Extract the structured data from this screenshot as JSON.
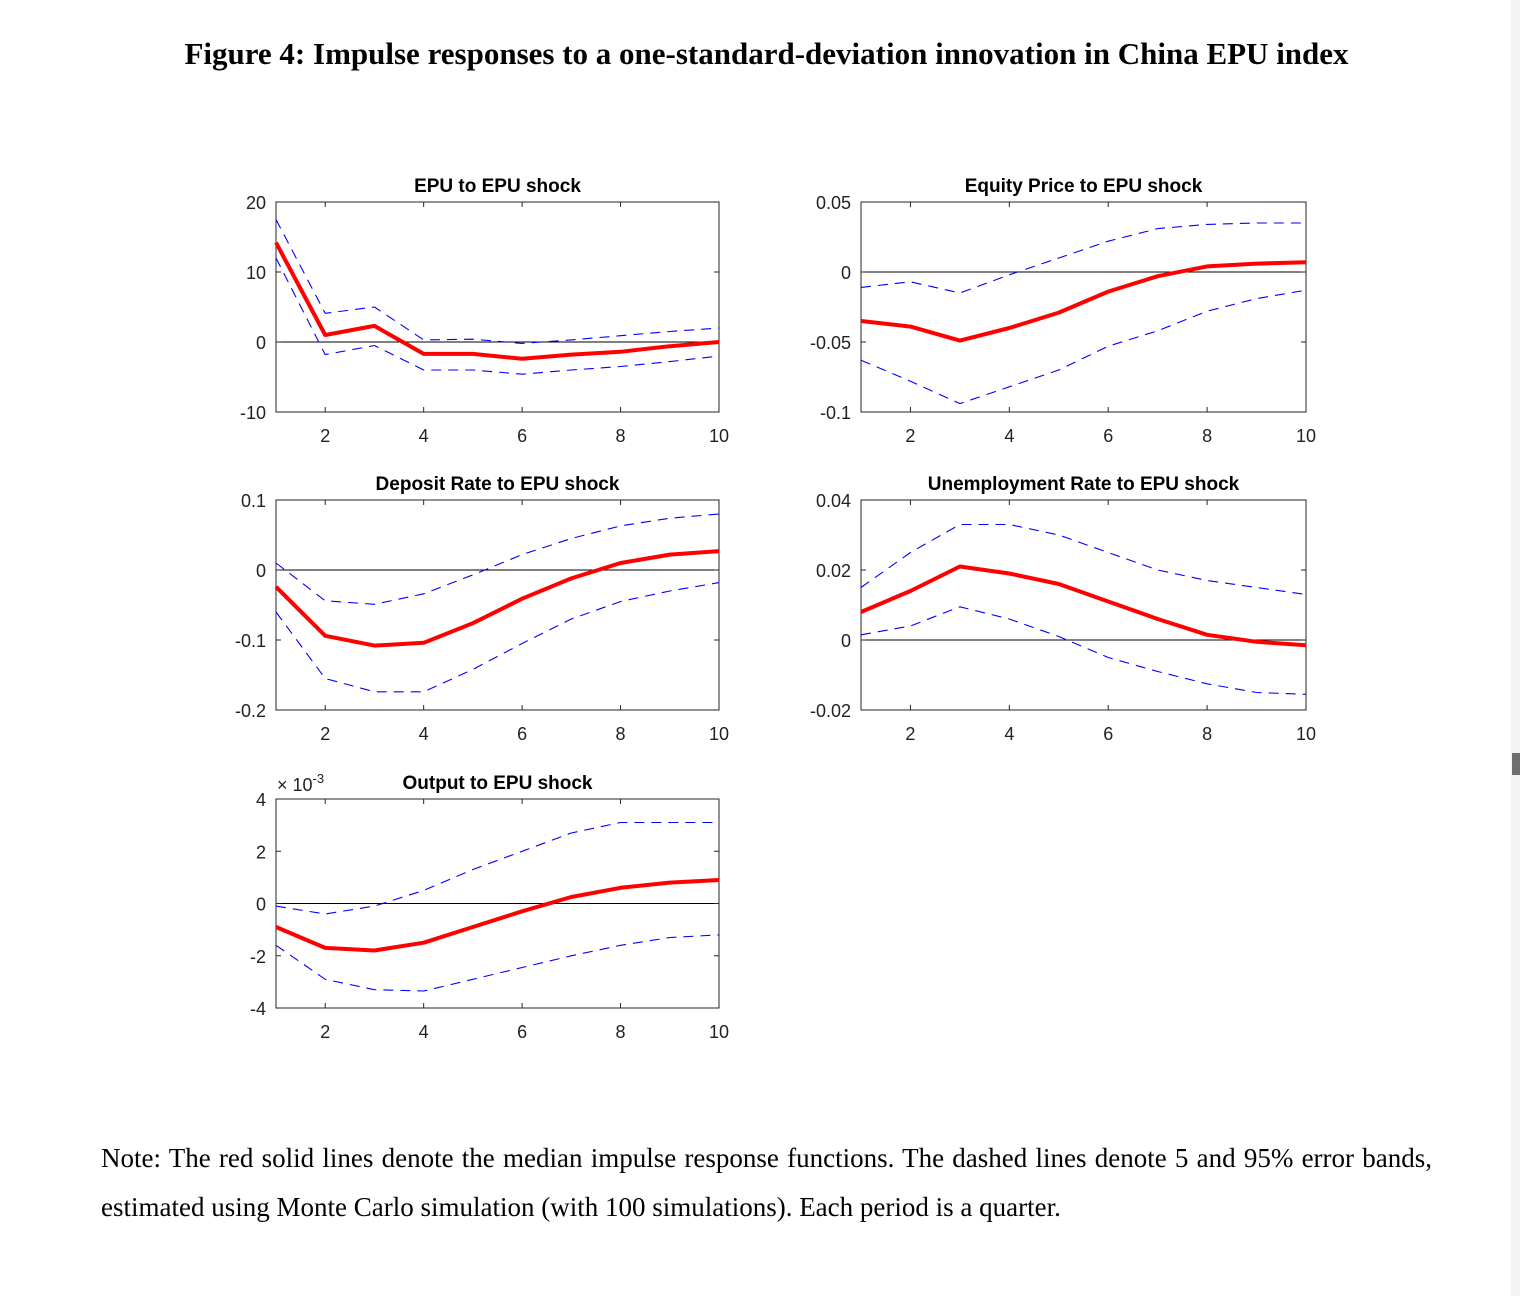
{
  "figure_title": "Figure 4: Impulse responses to a one-standard-deviation innovation in China EPU index",
  "note_text": "Note: The red solid lines denote the median impulse response functions. The dashed lines denote 5 and 95% error bands, estimated using Monte Carlo simulation (with 100 simulations). Each period is a quarter.",
  "colors": {
    "median": "#ff0000",
    "band": "#0000ff",
    "zero": "#000000",
    "axis": "#262626"
  },
  "chart_data": [
    {
      "type": "line",
      "title": "EPU to EPU shock",
      "x": [
        1,
        2,
        3,
        4,
        5,
        6,
        7,
        8,
        9,
        10
      ],
      "xlim": [
        1,
        10
      ],
      "ylim": [
        -10,
        20
      ],
      "xticks": [
        2,
        4,
        6,
        8,
        10
      ],
      "xtick_labels": [
        "2",
        "4",
        "6",
        "8",
        "10"
      ],
      "yticks": [
        -10,
        0,
        10,
        20
      ],
      "ytick_labels": [
        "-10",
        "0",
        "10",
        "20"
      ],
      "exponent_label": "",
      "series": [
        {
          "name": "median",
          "values": [
            14.2,
            1.0,
            2.3,
            -1.7,
            -1.7,
            -2.4,
            -1.8,
            -1.4,
            -0.6,
            0.0
          ]
        },
        {
          "name": "upper 95%",
          "values": [
            17.5,
            4.1,
            5.0,
            0.3,
            0.4,
            -0.2,
            0.3,
            0.9,
            1.5,
            2.0
          ]
        },
        {
          "name": "lower 5%",
          "values": [
            12.0,
            -1.8,
            -0.5,
            -4.0,
            -4.0,
            -4.6,
            -4.0,
            -3.5,
            -2.8,
            -2.0
          ]
        }
      ]
    },
    {
      "type": "line",
      "title": "Equity Price to EPU shock",
      "x": [
        1,
        2,
        3,
        4,
        5,
        6,
        7,
        8,
        9,
        10
      ],
      "xlim": [
        1,
        10
      ],
      "ylim": [
        -0.1,
        0.05
      ],
      "xticks": [
        2,
        4,
        6,
        8,
        10
      ],
      "xtick_labels": [
        "2",
        "4",
        "6",
        "8",
        "10"
      ],
      "yticks": [
        -0.1,
        -0.05,
        0,
        0.05
      ],
      "ytick_labels": [
        "-0.1",
        "-0.05",
        "0",
        "0.05"
      ],
      "exponent_label": "",
      "series": [
        {
          "name": "median",
          "values": [
            -0.035,
            -0.039,
            -0.049,
            -0.04,
            -0.029,
            -0.014,
            -0.003,
            0.004,
            0.006,
            0.007
          ]
        },
        {
          "name": "upper 95%",
          "values": [
            -0.011,
            -0.007,
            -0.015,
            -0.002,
            0.01,
            0.022,
            0.031,
            0.034,
            0.035,
            0.035
          ]
        },
        {
          "name": "lower 5%",
          "values": [
            -0.063,
            -0.078,
            -0.094,
            -0.082,
            -0.07,
            -0.053,
            -0.042,
            -0.028,
            -0.019,
            -0.013
          ]
        }
      ]
    },
    {
      "type": "line",
      "title": "Deposit Rate to EPU shock",
      "x": [
        1,
        2,
        3,
        4,
        5,
        6,
        7,
        8,
        9,
        10
      ],
      "xlim": [
        1,
        10
      ],
      "ylim": [
        -0.2,
        0.1
      ],
      "xticks": [
        2,
        4,
        6,
        8,
        10
      ],
      "xtick_labels": [
        "2",
        "4",
        "6",
        "8",
        "10"
      ],
      "yticks": [
        -0.2,
        -0.1,
        0,
        0.1
      ],
      "ytick_labels": [
        "-0.2",
        "-0.1",
        "0",
        "0.1"
      ],
      "exponent_label": "",
      "series": [
        {
          "name": "median",
          "values": [
            -0.024,
            -0.094,
            -0.108,
            -0.104,
            -0.076,
            -0.041,
            -0.012,
            0.01,
            0.022,
            0.027
          ]
        },
        {
          "name": "upper 95%",
          "values": [
            0.01,
            -0.044,
            -0.049,
            -0.034,
            -0.007,
            0.022,
            0.045,
            0.063,
            0.074,
            0.08
          ]
        },
        {
          "name": "lower 5%",
          "values": [
            -0.06,
            -0.155,
            -0.174,
            -0.174,
            -0.142,
            -0.105,
            -0.07,
            -0.045,
            -0.03,
            -0.018
          ]
        }
      ]
    },
    {
      "type": "line",
      "title": "Unemployment Rate  to EPU shock",
      "x": [
        1,
        2,
        3,
        4,
        5,
        6,
        7,
        8,
        9,
        10
      ],
      "xlim": [
        1,
        10
      ],
      "ylim": [
        -0.02,
        0.04
      ],
      "xticks": [
        2,
        4,
        6,
        8,
        10
      ],
      "xtick_labels": [
        "2",
        "4",
        "6",
        "8",
        "10"
      ],
      "yticks": [
        -0.02,
        0,
        0.02,
        0.04
      ],
      "ytick_labels": [
        "-0.02",
        "0",
        "0.02",
        "0.04"
      ],
      "exponent_label": "",
      "series": [
        {
          "name": "median",
          "values": [
            0.008,
            0.014,
            0.021,
            0.019,
            0.016,
            0.011,
            0.006,
            0.0015,
            -0.0005,
            -0.0015
          ]
        },
        {
          "name": "upper 95%",
          "values": [
            0.015,
            0.025,
            0.033,
            0.033,
            0.03,
            0.025,
            0.02,
            0.017,
            0.015,
            0.013
          ]
        },
        {
          "name": "lower 5%",
          "values": [
            0.0015,
            0.004,
            0.0095,
            0.006,
            0.001,
            -0.005,
            -0.009,
            -0.0125,
            -0.015,
            -0.0155
          ]
        }
      ]
    },
    {
      "type": "line",
      "title": "Output to EPU shock",
      "x": [
        1,
        2,
        3,
        4,
        5,
        6,
        7,
        8,
        9,
        10
      ],
      "xlim": [
        1,
        10
      ],
      "ylim": [
        -4,
        4
      ],
      "xticks": [
        2,
        4,
        6,
        8,
        10
      ],
      "xtick_labels": [
        "2",
        "4",
        "6",
        "8",
        "10"
      ],
      "yticks": [
        -4,
        -2,
        0,
        2,
        4
      ],
      "ytick_labels": [
        "-4",
        "-2",
        "0",
        "2",
        "4"
      ],
      "exponent_label": "× 10",
      "exponent_power": "-3",
      "series": [
        {
          "name": "median",
          "values": [
            -0.9,
            -1.7,
            -1.8,
            -1.5,
            -0.9,
            -0.3,
            0.25,
            0.6,
            0.8,
            0.9
          ]
        },
        {
          "name": "upper 95%",
          "values": [
            -0.1,
            -0.4,
            -0.1,
            0.5,
            1.3,
            2.0,
            2.7,
            3.1,
            3.1,
            3.1
          ]
        },
        {
          "name": "lower 5%",
          "values": [
            -1.6,
            -2.9,
            -3.3,
            -3.35,
            -2.9,
            -2.45,
            -2.0,
            -1.6,
            -1.3,
            -1.2
          ]
        }
      ]
    }
  ]
}
